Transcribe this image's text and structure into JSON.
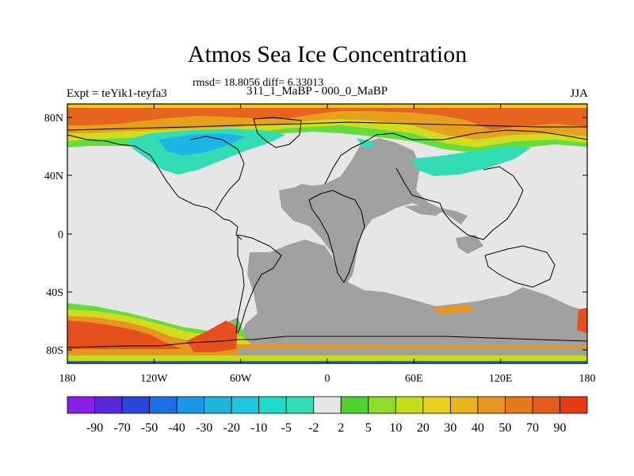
{
  "title": "Atmos Sea Ice Concentration",
  "subtitle_stats": "rmsd= 18.8056 diff= 6.33013",
  "subtitle_exp": "311_1_MaBP - 000_0_MaBP",
  "left_header": "Expt = teYik1-teyfa3",
  "right_header": "JJA",
  "lat_ticks": [
    "80N",
    "40N",
    "0",
    "40S",
    "80S"
  ],
  "lon_ticks": [
    "180",
    "120W",
    "60W",
    "0",
    "60E",
    "120E",
    "180"
  ],
  "colorbar": {
    "labels": [
      "-90",
      "-70",
      "-50",
      "-40",
      "-30",
      "-20",
      "-10",
      "-5",
      "-2",
      "2",
      "5",
      "10",
      "20",
      "30",
      "40",
      "50",
      "70",
      "90"
    ],
    "colors": [
      "#8c1ee6",
      "#5a28dc",
      "#2846dc",
      "#1e6ee6",
      "#1e96e6",
      "#1eb4dc",
      "#1ec8dc",
      "#1edcc8",
      "#32dcb4",
      "#e6e6e6",
      "#50d232",
      "#8cdc28",
      "#c8dc1e",
      "#e6d21e",
      "#e6b41e",
      "#e6961e",
      "#e6781e",
      "#e65a1e",
      "#e63c14"
    ]
  },
  "colors": {
    "land_mask": "#a0a0a0",
    "no_change": "#e6e6e6",
    "coastline": "#000000"
  }
}
